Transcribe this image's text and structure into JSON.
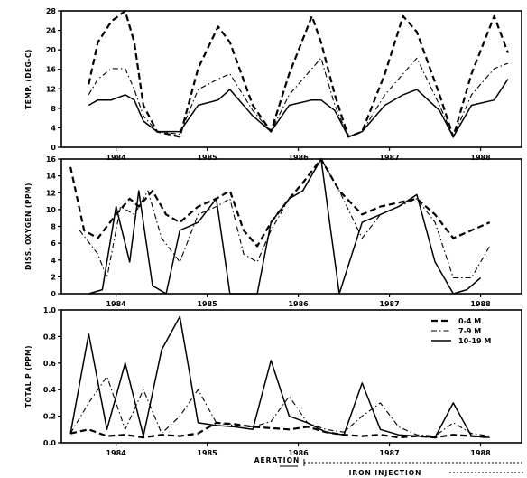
{
  "chart_data": [
    {
      "type": "line",
      "ylabel": "TEMP. (DEG-C)",
      "ylim": [
        0,
        26
      ],
      "yticks": [
        "0",
        "4",
        "8",
        "12",
        "16",
        "20",
        "24",
        "28"
      ],
      "xticks": [
        "1984",
        "1985",
        "1986",
        "1987",
        "1988"
      ],
      "grid": false,
      "series": [
        {
          "x": [
            1984.0,
            1984.1,
            1984.25,
            1984.4,
            1984.5,
            1984.6,
            1984.75,
            1985.0,
            1985.2,
            1985.42,
            1985.55,
            1985.8,
            1986.0,
            1986.2,
            1986.45,
            1986.55,
            1986.7,
            1986.85,
            1987.0,
            1987.25,
            1987.45,
            1987.6,
            1987.85,
            1988.0,
            1988.2,
            1988.45,
            1988.6
          ],
          "y": [
            12,
            20,
            24,
            26,
            20,
            8,
            3,
            2,
            15,
            23,
            20,
            8,
            3,
            14,
            25,
            20,
            10,
            2,
            3,
            14,
            25,
            22,
            10,
            2,
            14,
            25,
            18
          ]
        },
        {
          "x": [
            1984.0,
            1984.1,
            1984.25,
            1984.4,
            1984.5,
            1984.6,
            1984.75,
            1985.0,
            1985.2,
            1985.42,
            1985.55,
            1985.8,
            1986.0,
            1986.2,
            1986.45,
            1986.55,
            1986.7,
            1986.85,
            1987.0,
            1987.25,
            1987.45,
            1987.6,
            1987.85,
            1988.0,
            1988.2,
            1988.45,
            1988.6
          ],
          "y": [
            10,
            13,
            15,
            15,
            11,
            6,
            3,
            2.5,
            11,
            13,
            14,
            7,
            3,
            10,
            15,
            17,
            8,
            2,
            3,
            10,
            14,
            17,
            8,
            2,
            10,
            15,
            16
          ]
        },
        {
          "x": [
            1984.0,
            1984.1,
            1984.25,
            1984.4,
            1984.5,
            1984.6,
            1984.75,
            1985.0,
            1985.2,
            1985.42,
            1985.55,
            1985.8,
            1986.0,
            1986.2,
            1986.45,
            1986.55,
            1986.7,
            1986.85,
            1987.0,
            1987.25,
            1987.45,
            1987.6,
            1987.85,
            1988.0,
            1988.2,
            1988.45,
            1988.6
          ],
          "y": [
            8,
            9,
            9,
            10,
            9,
            5,
            3,
            3,
            8,
            9,
            11,
            6,
            3,
            8,
            9,
            9,
            7,
            2,
            3,
            8,
            10,
            11,
            7,
            2,
            8,
            9,
            13
          ]
        }
      ]
    },
    {
      "type": "line",
      "ylabel": "DISS. OXYGEN (PPM)",
      "ylim": [
        0,
        17
      ],
      "yticks": [
        "0",
        "2",
        "4",
        "6",
        "8",
        "10",
        "12",
        "14",
        "16"
      ],
      "xticks": [
        "1984",
        "1985",
        "1986",
        "1987",
        "1988"
      ],
      "grid": false,
      "series": [
        {
          "x": [
            1983.8,
            1983.95,
            1984.1,
            1984.3,
            1984.45,
            1984.55,
            1984.7,
            1984.85,
            1985.0,
            1985.2,
            1985.4,
            1985.55,
            1985.7,
            1985.85,
            1986.0,
            1986.2,
            1986.35,
            1986.55,
            1986.75,
            1987.0,
            1987.2,
            1987.4,
            1987.6,
            1987.8,
            1988.0,
            1988.2,
            1988.4
          ],
          "y": [
            16,
            8,
            7,
            10,
            12,
            11,
            13,
            10,
            9,
            11,
            12,
            13,
            8,
            6,
            9,
            12,
            14,
            17,
            13,
            10,
            11,
            11.5,
            12,
            10,
            7,
            8,
            9
          ]
        },
        {
          "x": [
            1983.9,
            1984.1,
            1984.2,
            1984.35,
            1984.5,
            1984.65,
            1984.8,
            1985.0,
            1985.2,
            1985.4,
            1985.55,
            1985.7,
            1985.85,
            1986.0,
            1986.2,
            1986.35,
            1986.55,
            1986.75,
            1987.0,
            1987.2,
            1987.4,
            1987.6,
            1987.8,
            1988.0,
            1988.2,
            1988.4
          ],
          "y": [
            8,
            5,
            2,
            11,
            10,
            13,
            7,
            4,
            10,
            11,
            12,
            5,
            4,
            8,
            12,
            13,
            17,
            13,
            7,
            10,
            11,
            12,
            9,
            2,
            2,
            6
          ]
        },
        {
          "x": [
            1984.0,
            1984.15,
            1984.3,
            1984.45,
            1984.55,
            1984.7,
            1984.85,
            1985.0,
            1985.2,
            1985.4,
            1985.55,
            1985.7,
            1985.85,
            1986.0,
            1986.2,
            1986.35,
            1986.55,
            1986.75,
            1987.0,
            1987.2,
            1987.4,
            1987.6,
            1987.8,
            1988.0,
            1988.15,
            1988.3
          ],
          "y": [
            0,
            0.5,
            11,
            4,
            13,
            1,
            0,
            8,
            9,
            12,
            0,
            0,
            0,
            9,
            12,
            13,
            17,
            0,
            9,
            10,
            11,
            12.5,
            4,
            0,
            0.5,
            2
          ]
        }
      ]
    },
    {
      "type": "line",
      "ylabel": "TOTAL P (PPM)",
      "ylim": [
        0,
        1.0
      ],
      "yticks": [
        "0.0",
        "0.2",
        "0.4",
        "0.6",
        "0.8",
        "1.0"
      ],
      "xticks": [
        "1984",
        "1985",
        "1986",
        "1987",
        "1988"
      ],
      "grid": false,
      "legend": "top-right",
      "series": [
        {
          "name": "0-4 M",
          "x": [
            1983.8,
            1984.0,
            1984.2,
            1984.4,
            1984.6,
            1984.8,
            1985.0,
            1985.2,
            1985.4,
            1985.6,
            1985.8,
            1986.0,
            1986.2,
            1986.4,
            1986.6,
            1986.8,
            1987.0,
            1987.2,
            1987.4,
            1987.6,
            1987.8,
            1988.0,
            1988.2,
            1988.4
          ],
          "y": [
            0.07,
            0.1,
            0.05,
            0.06,
            0.04,
            0.06,
            0.05,
            0.07,
            0.15,
            0.14,
            0.12,
            0.11,
            0.1,
            0.12,
            0.08,
            0.06,
            0.05,
            0.06,
            0.04,
            0.05,
            0.04,
            0.06,
            0.05,
            0.04
          ]
        },
        {
          "name": "7-9 M",
          "x": [
            1983.8,
            1984.0,
            1984.2,
            1984.4,
            1984.6,
            1984.8,
            1985.0,
            1985.2,
            1985.4,
            1985.6,
            1985.8,
            1986.0,
            1986.2,
            1986.4,
            1986.6,
            1986.8,
            1987.0,
            1987.2,
            1987.4,
            1987.6,
            1987.8,
            1988.0,
            1988.2,
            1988.4
          ],
          "y": [
            0.07,
            0.3,
            0.5,
            0.1,
            0.4,
            0.07,
            0.2,
            0.4,
            0.15,
            0.13,
            0.12,
            0.16,
            0.35,
            0.15,
            0.1,
            0.08,
            0.2,
            0.3,
            0.12,
            0.06,
            0.05,
            0.15,
            0.07,
            0.05
          ]
        },
        {
          "name": "10-19 M",
          "x": [
            1983.8,
            1984.0,
            1984.2,
            1984.4,
            1984.6,
            1984.8,
            1985.0,
            1985.2,
            1985.4,
            1985.6,
            1985.8,
            1986.0,
            1986.2,
            1986.4,
            1986.6,
            1986.8,
            1987.0,
            1987.2,
            1987.4,
            1987.6,
            1987.8,
            1988.0,
            1988.2,
            1988.4
          ],
          "y": [
            0.07,
            0.82,
            0.1,
            0.6,
            0.05,
            0.7,
            0.95,
            0.15,
            0.13,
            0.12,
            0.1,
            0.62,
            0.2,
            0.15,
            0.08,
            0.06,
            0.45,
            0.1,
            0.06,
            0.05,
            0.04,
            0.3,
            0.05,
            0.04
          ]
        }
      ]
    }
  ],
  "annotations": {
    "aeration": "AERATION",
    "iron_injection": "IRON INJECTION"
  }
}
